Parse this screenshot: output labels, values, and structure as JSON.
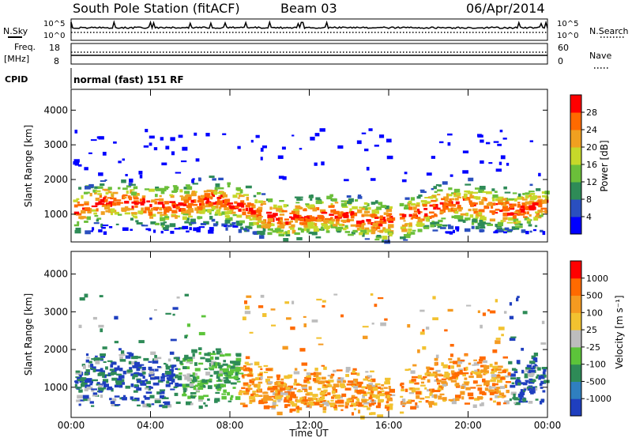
{
  "header": {
    "title": "South Pole Station (fitACF)",
    "beam": "Beam 03",
    "date": "06/Apr/2014"
  },
  "top_panels": {
    "nsky_label": "N.Sky",
    "nsearch_label": "N.Search",
    "noise_ticks": [
      "10^5",
      "10^0"
    ],
    "freq_label": "Freq.",
    "freq_unit": "[MHz]",
    "freq_ticks": [
      "18",
      "8"
    ],
    "nave_label": "Nave",
    "nave_ticks": [
      "60",
      "0"
    ],
    "cpid_label": "CPID",
    "cpid_text": "normal (fast) 151 RF"
  },
  "chart_data": [
    {
      "type": "heatmap",
      "title": "",
      "xlabel": "Time UT",
      "ylabel": "Slant Range [km]",
      "x_ticks": [
        "00:00",
        "04:00",
        "08:00",
        "12:00",
        "16:00",
        "20:00",
        "00:00"
      ],
      "y_ticks": [
        "1000",
        "2000",
        "3000",
        "4000"
      ],
      "ylim": [
        200,
        4600
      ],
      "colorbar_label": "Power [dB]",
      "colorbar_ticks": [
        "4",
        "8",
        "12",
        "16",
        "20",
        "24",
        "28"
      ],
      "colorbar_colors": [
        "#0000ff",
        "#2a4fbf",
        "#2e8b57",
        "#6bbf3a",
        "#c6d82a",
        "#f0a020",
        "#ff6a00",
        "#ff0000"
      ]
    },
    {
      "type": "heatmap",
      "title": "",
      "xlabel": "Time UT",
      "ylabel": "Slant Range [km]",
      "x_ticks": [
        "00:00",
        "04:00",
        "08:00",
        "12:00",
        "16:00",
        "20:00",
        "00:00"
      ],
      "y_ticks": [
        "1000",
        "2000",
        "3000",
        "4000"
      ],
      "ylim": [
        200,
        4600
      ],
      "colorbar_label": "Velocity [m s⁻¹]",
      "colorbar_ticks": [
        "1000",
        "500",
        "100",
        "25",
        "-25",
        "-100",
        "-500",
        "-1000"
      ],
      "colorbar_colors": [
        "#1f3fbf",
        "#2f7fbf",
        "#2e8b57",
        "#5cc43a",
        "#bdbdbd",
        "#f2c230",
        "#f59a20",
        "#ff6a00",
        "#ff0000"
      ]
    }
  ]
}
